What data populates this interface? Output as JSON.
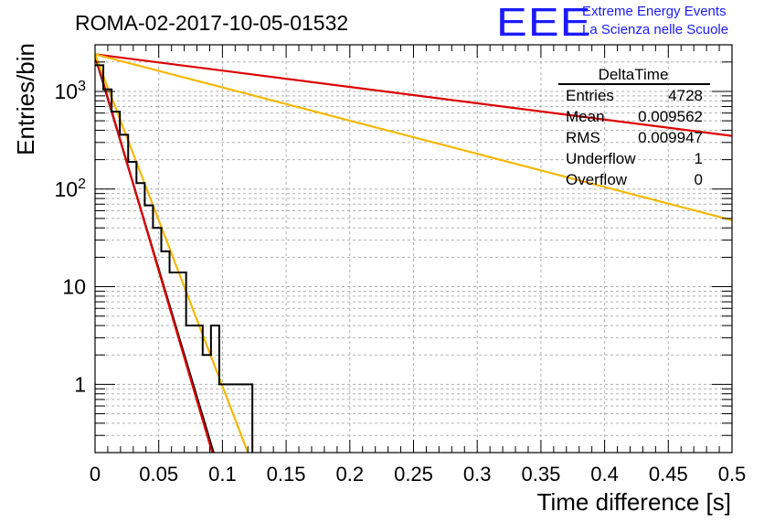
{
  "header": {
    "run_title": "ROMA-02-2017-10-05-01532",
    "logo_text": "EEE",
    "tagline_1": "Extreme Energy Events",
    "tagline_2": "La Scienza nelle Scuole"
  },
  "stats_box": {
    "title": "DeltaTime",
    "rows": [
      {
        "label": "Entries",
        "value": "4728"
      },
      {
        "label": "Mean",
        "value": "0.009562"
      },
      {
        "label": "RMS",
        "value": "0.009947"
      },
      {
        "label": "Underflow",
        "value": "1"
      },
      {
        "label": "Overflow",
        "value": "0"
      }
    ]
  },
  "colors": {
    "histogram": "#000000",
    "fit_black": "#000000",
    "fit_red": "#dd0000",
    "fit_yellow": "#f5b800",
    "grid": "#b0b0b0",
    "logo": "#1a1aff"
  },
  "chart_data": {
    "type": "line",
    "title": "ROMA-02-2017-10-05-01532",
    "xlabel": "Time difference [s]",
    "ylabel": "Entries/bin",
    "xlim": [
      0,
      0.5
    ],
    "ylim": [
      0.2,
      3000
    ],
    "yscale": "log",
    "grid": true,
    "x_ticks": [
      "0",
      "0.05",
      "0.1",
      "0.15",
      "0.2",
      "0.25",
      "0.3",
      "0.35",
      "0.4",
      "0.45",
      "0.5"
    ],
    "y_ticks": [
      {
        "value": 1,
        "label": "1"
      },
      {
        "value": 10,
        "label": "10"
      },
      {
        "value": 100,
        "label": "10^2"
      },
      {
        "value": 1000,
        "label": "10^3"
      }
    ],
    "histogram": {
      "name": "DeltaTime",
      "bin_width": 0.0065,
      "counts": [
        1850,
        1050,
        620,
        360,
        190,
        115,
        68,
        40,
        23,
        14,
        14,
        4,
        4,
        2,
        4,
        1,
        1,
        1,
        1
      ]
    },
    "series": [
      {
        "name": "exp fit (black)",
        "color": "black",
        "x": [
          0,
          0.093
        ],
        "y": [
          2300,
          0.2
        ]
      },
      {
        "name": "exp fit (red, steep)",
        "color": "red",
        "x": [
          0,
          0.092
        ],
        "y": [
          2400,
          0.2
        ]
      },
      {
        "name": "exp fit (yellow, steep)",
        "color": "yellow",
        "x": [
          0,
          0.12
        ],
        "y": [
          2400,
          0.2
        ]
      },
      {
        "name": "exp fit (red, shallow)",
        "color": "red",
        "x": [
          0,
          0.5
        ],
        "y": [
          2400,
          350
        ]
      },
      {
        "name": "exp fit (yellow, shallow)",
        "color": "yellow",
        "x": [
          0,
          0.5
        ],
        "y": [
          2400,
          48
        ]
      }
    ]
  }
}
